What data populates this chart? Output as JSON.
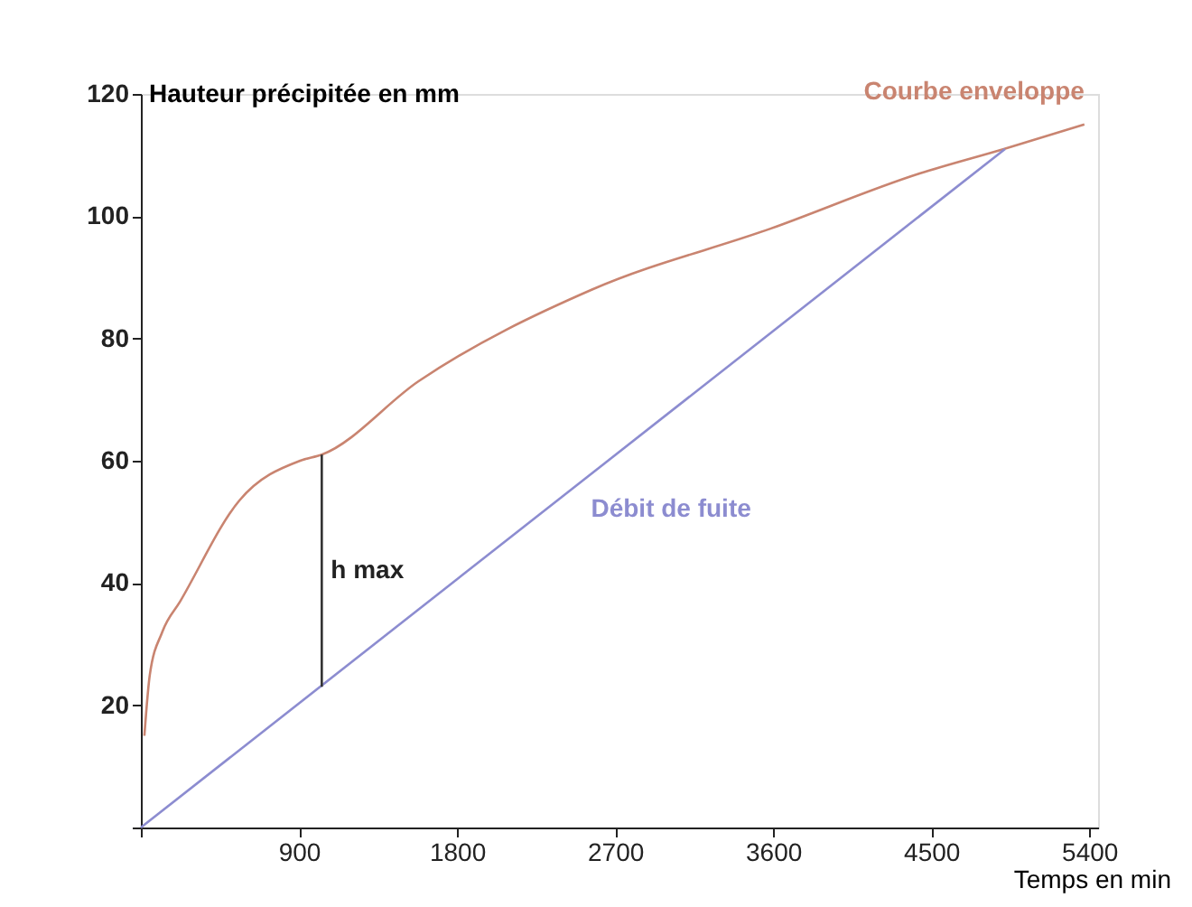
{
  "chart_data": {
    "type": "line",
    "xlabel": "Temps en min",
    "ylabel": "Hauteur précipitée en mm",
    "xlim": [
      0,
      5450
    ],
    "ylim": [
      0,
      120
    ],
    "xticks": [
      {
        "value": 0,
        "label": null
      },
      900,
      1800,
      2700,
      3600,
      4500,
      5400
    ],
    "yticks": [
      {
        "value": 0,
        "label": null
      },
      20,
      40,
      60,
      80,
      100,
      120
    ],
    "line_style": "solid",
    "marker": "none",
    "annotations": [
      {
        "text": "h max",
        "x": 1030,
        "y": 42
      }
    ],
    "series": [
      {
        "name": "Courbe enveloppe",
        "color": "#c98470",
        "x": [
          20,
          51,
          122,
          224,
          561,
          907,
          1030,
          1581,
          2569,
          3588,
          4434,
          4913,
          5372
        ],
        "values": [
          15,
          25,
          32,
          37,
          53.5,
          60,
          61,
          73,
          88,
          98,
          107,
          111,
          115
        ]
      },
      {
        "name": "Débit de fuite",
        "color": "#8c8cd0",
        "x": [
          0,
          4920
        ],
        "values": [
          0,
          111
        ]
      },
      {
        "color": "#333333",
        "x": [
          1030,
          1030
        ],
        "values": [
          23,
          61
        ]
      }
    ]
  }
}
